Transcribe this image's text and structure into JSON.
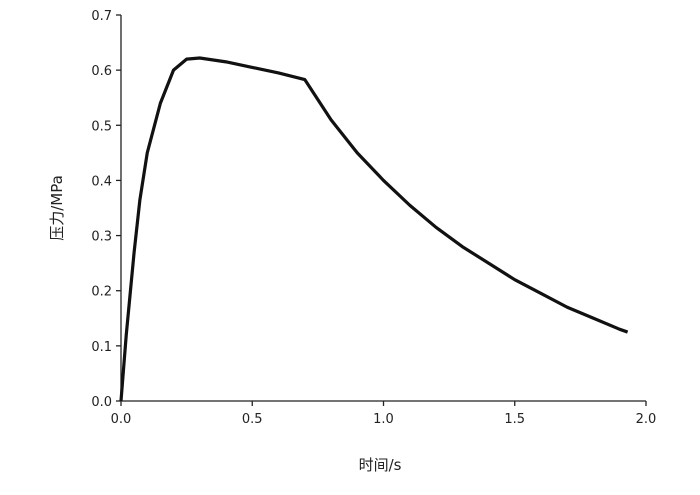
{
  "chart_data": {
    "type": "line",
    "x_label": "时间/s",
    "y_label": "压力/MPa",
    "x": [
      0,
      0.02,
      0.05,
      0.072,
      0.1,
      0.15,
      0.2,
      0.25,
      0.3,
      0.4,
      0.5,
      0.6,
      0.7,
      0.8,
      0.9,
      1.0,
      1.1,
      1.2,
      1.3,
      1.4,
      1.5,
      1.6,
      1.7,
      1.8,
      1.9,
      1.93
    ],
    "series": [
      {
        "color": "#111111",
        "values": [
          0,
          0.12,
          0.27,
          0.365,
          0.45,
          0.54,
          0.6,
          0.62,
          0.622,
          0.615,
          0.605,
          0.595,
          0.583,
          0.51,
          0.45,
          0.4,
          0.355,
          0.315,
          0.28,
          0.25,
          0.22,
          0.195,
          0.17,
          0.15,
          0.13,
          0.125
        ]
      }
    ],
    "xlim": [
      0,
      2.0
    ],
    "ylim": [
      0,
      0.7
    ],
    "xticks": [
      {
        "value": 0,
        "label": "0.0"
      },
      0.5,
      {
        "value": 1.0,
        "label": "1.0"
      },
      1.5,
      {
        "value": 2.0,
        "label": "2.0"
      }
    ],
    "yticks": [
      {
        "value": 0,
        "label": "0.0"
      },
      0.1,
      0.2,
      0.3,
      0.4,
      0.5,
      0.6,
      0.7
    ]
  }
}
